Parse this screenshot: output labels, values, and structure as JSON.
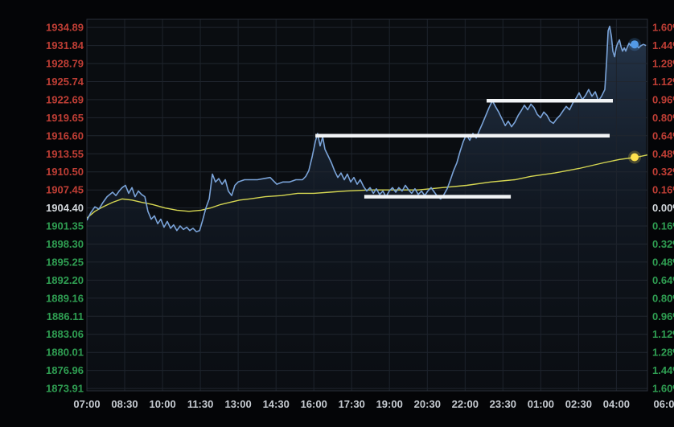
{
  "chart_data": {
    "type": "line",
    "title": "",
    "baseline_price": "1904.40",
    "grid": true,
    "ylim_pct": [
      -1.63,
      1.68
    ],
    "xlim_hours": [
      0,
      22.23
    ],
    "pct_ticks": [
      1.6,
      1.44,
      1.28,
      1.12,
      0.96,
      0.8,
      0.64,
      0.48,
      0.32,
      0.16,
      0,
      -0.16,
      -0.32,
      -0.48,
      -0.64,
      -0.8,
      -0.96,
      -1.12,
      -1.28,
      -1.44,
      -1.6
    ],
    "left_axis_labels": [
      "1934.89",
      "1931.84",
      "1928.79",
      "1925.74",
      "1922.69",
      "1919.65",
      "1916.60",
      "1913.55",
      "1910.50",
      "1907.45",
      "1904.40",
      "1901.35",
      "1898.30",
      "1895.25",
      "1892.20",
      "1889.16",
      "1886.11",
      "1883.06",
      "1880.01",
      "1876.96",
      "1873.91"
    ],
    "right_axis_labels": [
      "1.60%",
      "1.44%",
      "1.28%",
      "1.12%",
      "0.96%",
      "0.80%",
      "0.64%",
      "0.48%",
      "0.32%",
      "0.16%",
      "0.00%",
      "0.16%",
      "0.32%",
      "0.48%",
      "0.64%",
      "0.80%",
      "0.96%",
      "1.12%",
      "1.28%",
      "1.44%",
      "1.60%"
    ],
    "time_ticks": [
      {
        "label": "07:00",
        "t": 0
      },
      {
        "label": "08:30",
        "t": 1.5
      },
      {
        "label": "10:00",
        "t": 3
      },
      {
        "label": "11:30",
        "t": 4.5
      },
      {
        "label": "13:00",
        "t": 6
      },
      {
        "label": "14:30",
        "t": 7.5
      },
      {
        "label": "16:00",
        "t": 9
      },
      {
        "label": "17:30",
        "t": 10.5
      },
      {
        "label": "19:00",
        "t": 12
      },
      {
        "label": "20:30",
        "t": 13.5
      },
      {
        "label": "22:00",
        "t": 15
      },
      {
        "label": "23:30",
        "t": 16.5
      },
      {
        "label": "01:00",
        "t": 18
      },
      {
        "label": "02:30",
        "t": 19.5
      },
      {
        "label": "04:00",
        "t": 21
      },
      {
        "label": "06:00",
        "t": 23
      }
    ],
    "series": [
      {
        "name": "price",
        "style": "line-with-area",
        "points": [
          [
            0,
            -0.11
          ],
          [
            0.16,
            -0.04
          ],
          [
            0.32,
            0.01
          ],
          [
            0.48,
            -0.01
          ],
          [
            0.64,
            0.05
          ],
          [
            0.8,
            0.1
          ],
          [
            1.02,
            0.14
          ],
          [
            1.15,
            0.11
          ],
          [
            1.28,
            0.15
          ],
          [
            1.4,
            0.18
          ],
          [
            1.53,
            0.2
          ],
          [
            1.66,
            0.13
          ],
          [
            1.79,
            0.18
          ],
          [
            1.91,
            0.1
          ],
          [
            2.04,
            0.15
          ],
          [
            2.17,
            0.12
          ],
          [
            2.3,
            0.1
          ],
          [
            2.42,
            -0.03
          ],
          [
            2.55,
            -0.1
          ],
          [
            2.68,
            -0.07
          ],
          [
            2.81,
            -0.14
          ],
          [
            2.93,
            -0.1
          ],
          [
            3.06,
            -0.17
          ],
          [
            3.19,
            -0.12
          ],
          [
            3.32,
            -0.18
          ],
          [
            3.44,
            -0.15
          ],
          [
            3.57,
            -0.2
          ],
          [
            3.7,
            -0.16
          ],
          [
            3.83,
            -0.19
          ],
          [
            3.96,
            -0.17
          ],
          [
            4.08,
            -0.2
          ],
          [
            4.21,
            -0.18
          ],
          [
            4.34,
            -0.21
          ],
          [
            4.47,
            -0.2
          ],
          [
            4.59,
            -0.11
          ],
          [
            4.72,
            0
          ],
          [
            4.85,
            0.08
          ],
          [
            4.98,
            0.3
          ],
          [
            5.1,
            0.23
          ],
          [
            5.23,
            0.26
          ],
          [
            5.36,
            0.21
          ],
          [
            5.49,
            0.25
          ],
          [
            5.61,
            0.15
          ],
          [
            5.74,
            0.11
          ],
          [
            5.87,
            0.2
          ],
          [
            6,
            0.23
          ],
          [
            6.25,
            0.25
          ],
          [
            6.51,
            0.25
          ],
          [
            6.76,
            0.25
          ],
          [
            7.02,
            0.26
          ],
          [
            7.27,
            0.27
          ],
          [
            7.53,
            0.21
          ],
          [
            7.78,
            0.23
          ],
          [
            8.04,
            0.23
          ],
          [
            8.29,
            0.25
          ],
          [
            8.55,
            0.25
          ],
          [
            8.68,
            0.28
          ],
          [
            8.8,
            0.33
          ],
          [
            8.93,
            0.45
          ],
          [
            9.06,
            0.59
          ],
          [
            9.15,
            0.66
          ],
          [
            9.25,
            0.55
          ],
          [
            9.35,
            0.63
          ],
          [
            9.44,
            0.52
          ],
          [
            9.57,
            0.46
          ],
          [
            9.7,
            0.4
          ],
          [
            9.82,
            0.33
          ],
          [
            9.95,
            0.27
          ],
          [
            10.08,
            0.31
          ],
          [
            10.21,
            0.25
          ],
          [
            10.33,
            0.3
          ],
          [
            10.46,
            0.23
          ],
          [
            10.59,
            0.27
          ],
          [
            10.72,
            0.21
          ],
          [
            10.84,
            0.25
          ],
          [
            10.97,
            0.19
          ],
          [
            11.1,
            0.15
          ],
          [
            11.23,
            0.18
          ],
          [
            11.36,
            0.13
          ],
          [
            11.48,
            0.17
          ],
          [
            11.61,
            0.12
          ],
          [
            11.74,
            0.15
          ],
          [
            11.86,
            0.1
          ],
          [
            11.99,
            0.15
          ],
          [
            12.12,
            0.18
          ],
          [
            12.25,
            0.14
          ],
          [
            12.37,
            0.18
          ],
          [
            12.5,
            0.15
          ],
          [
            12.63,
            0.2
          ],
          [
            12.76,
            0.16
          ],
          [
            12.88,
            0.13
          ],
          [
            13.01,
            0.17
          ],
          [
            13.14,
            0.12
          ],
          [
            13.27,
            0.15
          ],
          [
            13.4,
            0.11
          ],
          [
            13.52,
            0.15
          ],
          [
            13.65,
            0.18
          ],
          [
            13.78,
            0.14
          ],
          [
            13.91,
            0.1
          ],
          [
            14.03,
            0.08
          ],
          [
            14.16,
            0.12
          ],
          [
            14.29,
            0.17
          ],
          [
            14.42,
            0.25
          ],
          [
            14.54,
            0.33
          ],
          [
            14.67,
            0.4
          ],
          [
            14.8,
            0.5
          ],
          [
            14.93,
            0.59
          ],
          [
            15.05,
            0.65
          ],
          [
            15.18,
            0.6
          ],
          [
            15.31,
            0.66
          ],
          [
            15.44,
            0.62
          ],
          [
            15.57,
            0.69
          ],
          [
            15.69,
            0.75
          ],
          [
            15.82,
            0.82
          ],
          [
            15.95,
            0.89
          ],
          [
            16.08,
            0.95
          ],
          [
            16.2,
            0.9
          ],
          [
            16.33,
            0.85
          ],
          [
            16.46,
            0.79
          ],
          [
            16.59,
            0.73
          ],
          [
            16.71,
            0.77
          ],
          [
            16.84,
            0.72
          ],
          [
            16.97,
            0.76
          ],
          [
            17.1,
            0.82
          ],
          [
            17.22,
            0.86
          ],
          [
            17.35,
            0.91
          ],
          [
            17.48,
            0.87
          ],
          [
            17.61,
            0.92
          ],
          [
            17.73,
            0.89
          ],
          [
            17.86,
            0.83
          ],
          [
            17.99,
            0.8
          ],
          [
            18.12,
            0.85
          ],
          [
            18.25,
            0.82
          ],
          [
            18.37,
            0.77
          ],
          [
            18.5,
            0.75
          ],
          [
            18.63,
            0.79
          ],
          [
            18.76,
            0.82
          ],
          [
            18.88,
            0.86
          ],
          [
            19.01,
            0.9
          ],
          [
            19.14,
            0.87
          ],
          [
            19.27,
            0.93
          ],
          [
            19.39,
            0.97
          ],
          [
            19.52,
            1.02
          ],
          [
            19.65,
            0.96
          ],
          [
            19.78,
            1
          ],
          [
            19.9,
            1.05
          ],
          [
            20.03,
            0.99
          ],
          [
            20.16,
            1.03
          ],
          [
            20.29,
            0.95
          ],
          [
            20.41,
            0.99
          ],
          [
            20.54,
            1.05
          ],
          [
            20.61,
            1.3
          ],
          [
            20.67,
            1.57
          ],
          [
            20.73,
            1.61
          ],
          [
            20.8,
            1.52
          ],
          [
            20.86,
            1.39
          ],
          [
            20.93,
            1.34
          ],
          [
            20.99,
            1.42
          ],
          [
            21.05,
            1.46
          ],
          [
            21.12,
            1.49
          ],
          [
            21.18,
            1.43
          ],
          [
            21.24,
            1.39
          ],
          [
            21.31,
            1.42
          ],
          [
            21.37,
            1.39
          ],
          [
            21.44,
            1.43
          ],
          [
            21.5,
            1.46
          ],
          [
            21.56,
            1.44
          ],
          [
            21.63,
            1.47
          ],
          [
            21.69,
            1.45
          ],
          [
            21.79,
            1.45
          ],
          [
            21.88,
            1.42
          ],
          [
            21.98,
            1.44
          ],
          [
            22.07,
            1.45
          ],
          [
            22.17,
            1.44
          ]
        ]
      },
      {
        "name": "moving-average",
        "style": "line",
        "points": [
          [
            0,
            -0.09
          ],
          [
            0.32,
            -0.03
          ],
          [
            0.64,
            0.01
          ],
          [
            1.02,
            0.05
          ],
          [
            1.4,
            0.08
          ],
          [
            1.79,
            0.07
          ],
          [
            2.17,
            0.05
          ],
          [
            2.62,
            0.03
          ],
          [
            3.09,
            0
          ],
          [
            3.57,
            -0.02
          ],
          [
            4.05,
            -0.03
          ],
          [
            4.53,
            -0.02
          ],
          [
            4.91,
            0
          ],
          [
            5.3,
            0.03
          ],
          [
            5.68,
            0.05
          ],
          [
            6.06,
            0.07
          ],
          [
            6.44,
            0.08
          ],
          [
            7.08,
            0.1
          ],
          [
            7.72,
            0.11
          ],
          [
            8.36,
            0.13
          ],
          [
            9,
            0.13
          ],
          [
            9.63,
            0.14
          ],
          [
            10.27,
            0.15
          ],
          [
            11.23,
            0.16
          ],
          [
            12.18,
            0.16
          ],
          [
            13.14,
            0.16
          ],
          [
            14.1,
            0.18
          ],
          [
            15.06,
            0.2
          ],
          [
            16.01,
            0.23
          ],
          [
            16.97,
            0.25
          ],
          [
            17.61,
            0.28
          ],
          [
            18.56,
            0.31
          ],
          [
            19.52,
            0.35
          ],
          [
            20.48,
            0.4
          ],
          [
            21.12,
            0.43
          ],
          [
            21.79,
            0.45
          ],
          [
            22.23,
            0.47
          ]
        ]
      }
    ],
    "level_lines": [
      {
        "pct": 0.95,
        "t1": 15.85,
        "t2": 20.86
      },
      {
        "pct": 0.64,
        "t1": 9.06,
        "t2": 20.73
      },
      {
        "pct": 0.1,
        "t1": 11.0,
        "t2": 16.81
      }
    ],
    "markers": [
      {
        "name": "last-price-dot",
        "t": 21.72,
        "pct": 1.45,
        "color": "#539ae6"
      },
      {
        "name": "ma-last-dot",
        "t": 21.72,
        "pct": 0.45,
        "color": "#ffe24d"
      }
    ],
    "legend": "none",
    "colors": {
      "up": "#bf3e35",
      "down": "#2f9e52",
      "zero": "#d3d8dc",
      "time_label": "#c6cbd1",
      "price_line": "#7aa3d8",
      "ma_line": "#d6d752",
      "level_line": "#f2f4f6",
      "grid_h": "#20262f",
      "grid_v": "#1d232c",
      "plot_border": "#2a303a",
      "plot_bg": "#0a0d11",
      "area_top": "rgba(96,140,196,0.32)",
      "area_mid": "rgba(58,88,132,0.14)",
      "area_bottom": "rgba(24,36,54,0.04)"
    }
  }
}
